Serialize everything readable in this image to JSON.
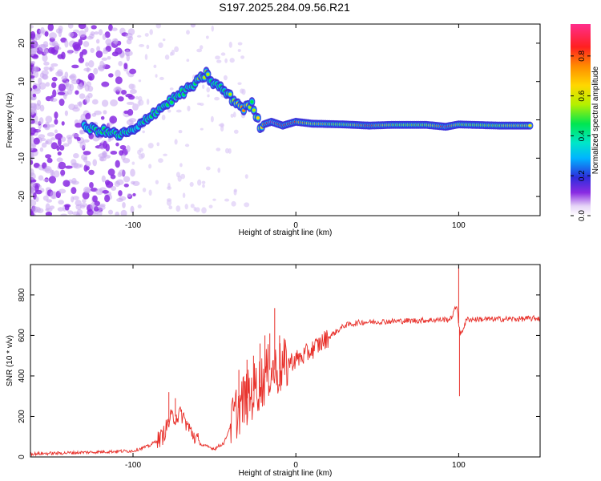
{
  "chart_data": [
    {
      "type": "heatmap",
      "title": "S197.2025.284.09.56.R21",
      "xlabel": "Height of straight line (km)",
      "ylabel": "Frequency (Hz)",
      "xlim": [
        -163,
        150
      ],
      "ylim": [
        -25,
        25
      ],
      "xticks": [
        -100,
        0,
        100
      ],
      "yticks": [
        -20,
        -10,
        0,
        10,
        20
      ],
      "colorbar": {
        "label": "Normalized spectral amplitude",
        "range": [
          0,
          0.96
        ],
        "ticks": [
          0.0,
          0.2,
          0.4,
          0.6,
          0.8
        ],
        "colors": [
          "#ffffff",
          "#e6d5f7",
          "#8a2be2",
          "#2d2ddc",
          "#00b4ff",
          "#00e6c8",
          "#00e650",
          "#b4f000",
          "#ffd700",
          "#ff8c00",
          "#ff2020",
          "#ff2e8c"
        ]
      },
      "ridge": [
        {
          "x": -130,
          "y": -2.0,
          "amp": 0.35
        },
        {
          "x": -118,
          "y": -3.0,
          "amp": 0.4
        },
        {
          "x": -108,
          "y": -4.0,
          "amp": 0.45
        },
        {
          "x": -98,
          "y": -2.5,
          "amp": 0.35
        },
        {
          "x": -90,
          "y": 1.0,
          "amp": 0.4
        },
        {
          "x": -80,
          "y": 4.0,
          "amp": 0.45
        },
        {
          "x": -70,
          "y": 7.0,
          "amp": 0.4
        },
        {
          "x": -63,
          "y": 9.0,
          "amp": 0.45
        },
        {
          "x": -55,
          "y": 12.0,
          "amp": 0.5
        },
        {
          "x": -52,
          "y": 10.0,
          "amp": 0.4
        },
        {
          "x": -45,
          "y": 8.0,
          "amp": 0.4
        },
        {
          "x": -38,
          "y": 5.0,
          "amp": 0.55
        },
        {
          "x": -32,
          "y": 3.0,
          "amp": 0.7
        },
        {
          "x": -27,
          "y": 4.0,
          "amp": 0.45
        },
        {
          "x": -22,
          "y": -1.5,
          "amp": 0.6
        },
        {
          "x": -15,
          "y": -0.5,
          "amp": 0.9
        },
        {
          "x": -8,
          "y": -1.5,
          "amp": 0.75
        },
        {
          "x": 0,
          "y": -0.5,
          "amp": 0.75
        },
        {
          "x": 10,
          "y": -1.0,
          "amp": 0.6
        },
        {
          "x": 30,
          "y": -1.2,
          "amp": 0.5
        },
        {
          "x": 45,
          "y": -1.5,
          "amp": 0.8
        },
        {
          "x": 60,
          "y": -1.3,
          "amp": 0.55
        },
        {
          "x": 80,
          "y": -1.3,
          "amp": 0.5
        },
        {
          "x": 92,
          "y": -1.8,
          "amp": 0.85
        },
        {
          "x": 100,
          "y": -1.2,
          "amp": 0.55
        },
        {
          "x": 125,
          "y": -1.5,
          "amp": 0.55
        },
        {
          "x": 145,
          "y": -1.5,
          "amp": 0.65
        }
      ]
    },
    {
      "type": "line",
      "xlabel": "Height of straight line (km)",
      "ylabel": "SNR (10 * v/v)",
      "xlim": [
        -163,
        150
      ],
      "ylim": [
        0,
        950
      ],
      "xticks": [
        -100,
        0,
        100
      ],
      "yticks": [
        0,
        200,
        400,
        600,
        800
      ],
      "line_color": "#e8302a",
      "series": [
        {
          "name": "SNR",
          "x": [
            -163,
            -140,
            -120,
            -100,
            -90,
            -82,
            -77,
            -74,
            -70,
            -65,
            -58,
            -50,
            -44,
            -40,
            -36,
            -32,
            -28,
            -24,
            -20,
            -16,
            -12,
            -8,
            -4,
            0,
            5,
            10,
            15,
            20,
            25,
            30,
            40,
            60,
            80,
            95,
            99,
            100,
            101,
            105,
            120,
            140,
            150
          ],
          "y": [
            15,
            20,
            25,
            30,
            55,
            100,
            190,
            200,
            210,
            130,
            60,
            40,
            70,
            160,
            230,
            280,
            300,
            350,
            380,
            430,
            430,
            440,
            470,
            480,
            500,
            530,
            560,
            590,
            620,
            650,
            665,
            670,
            675,
            680,
            750,
            660,
            600,
            680,
            680,
            682,
            685
          ]
        }
      ],
      "spikes": [
        {
          "x": -78,
          "y": 320
        },
        {
          "x": -74,
          "y": 290
        },
        {
          "x": -35,
          "y": 430
        },
        {
          "x": -30,
          "y": 480
        },
        {
          "x": -26,
          "y": 500
        },
        {
          "x": -22,
          "y": 560
        },
        {
          "x": -19,
          "y": 600
        },
        {
          "x": -16,
          "y": 610
        },
        {
          "x": -13,
          "y": 735
        },
        {
          "x": -10,
          "y": 600
        },
        {
          "x": -7,
          "y": 530
        },
        {
          "x": 100,
          "y": 940
        },
        {
          "x": 100.5,
          "y": 300
        }
      ]
    }
  ]
}
